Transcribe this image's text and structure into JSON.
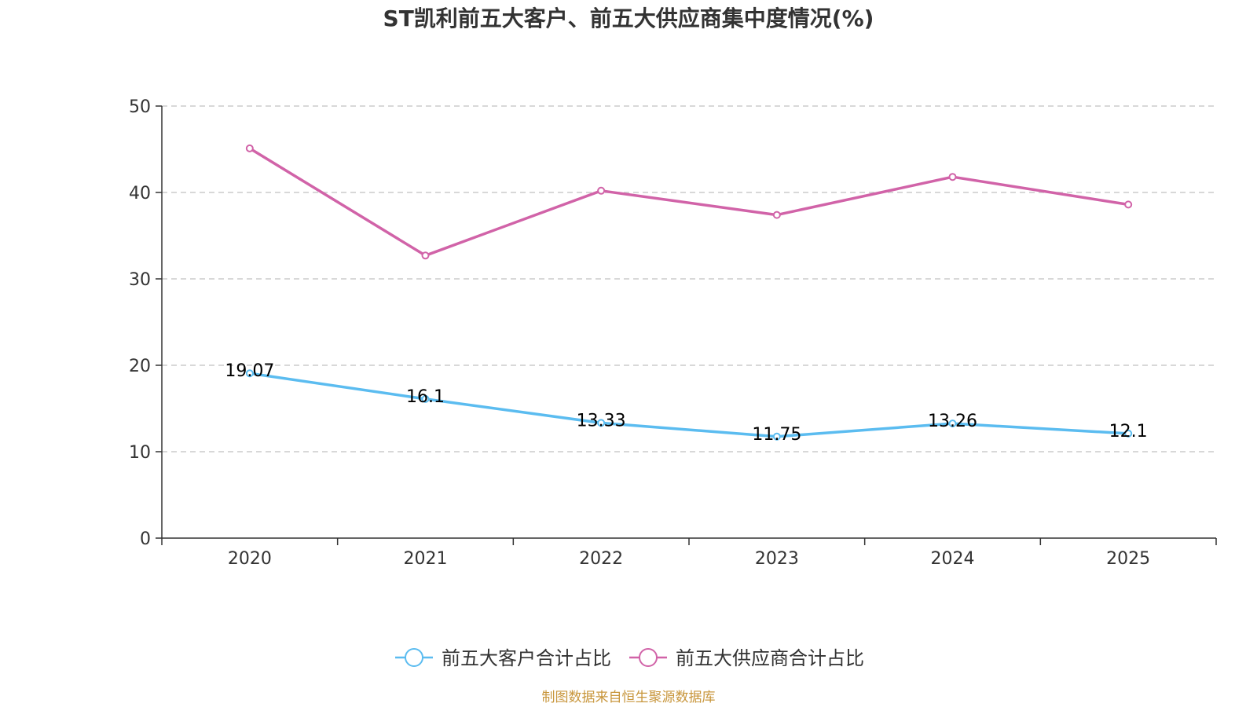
{
  "chart_data": {
    "type": "line",
    "title": "ST凯利前五大客户、前五大供应商集中度情况(%)",
    "categories": [
      "2020",
      "2021",
      "2022",
      "2023",
      "2024",
      "2025"
    ],
    "ylim": [
      0,
      50
    ],
    "yticks": [
      0,
      10,
      20,
      30,
      40,
      50
    ],
    "grid": true,
    "legend_position": "bottom",
    "series": [
      {
        "name": "前五大客户合计占比",
        "color": "#5bbcf0",
        "values": [
          19.07,
          16.1,
          13.33,
          11.75,
          13.26,
          12.1
        ],
        "labels": [
          "19.07",
          "16.1",
          "13.33",
          "11.75",
          "13.26",
          "12.1"
        ],
        "show_labels": true
      },
      {
        "name": "前五大供应商合计占比",
        "color": "#d163a8",
        "values": [
          45.1,
          32.7,
          40.2,
          37.4,
          41.8,
          38.6
        ],
        "show_labels": false
      }
    ]
  },
  "source": {
    "text": "制图数据来自恒生聚源数据库",
    "color": "#c8963c"
  }
}
